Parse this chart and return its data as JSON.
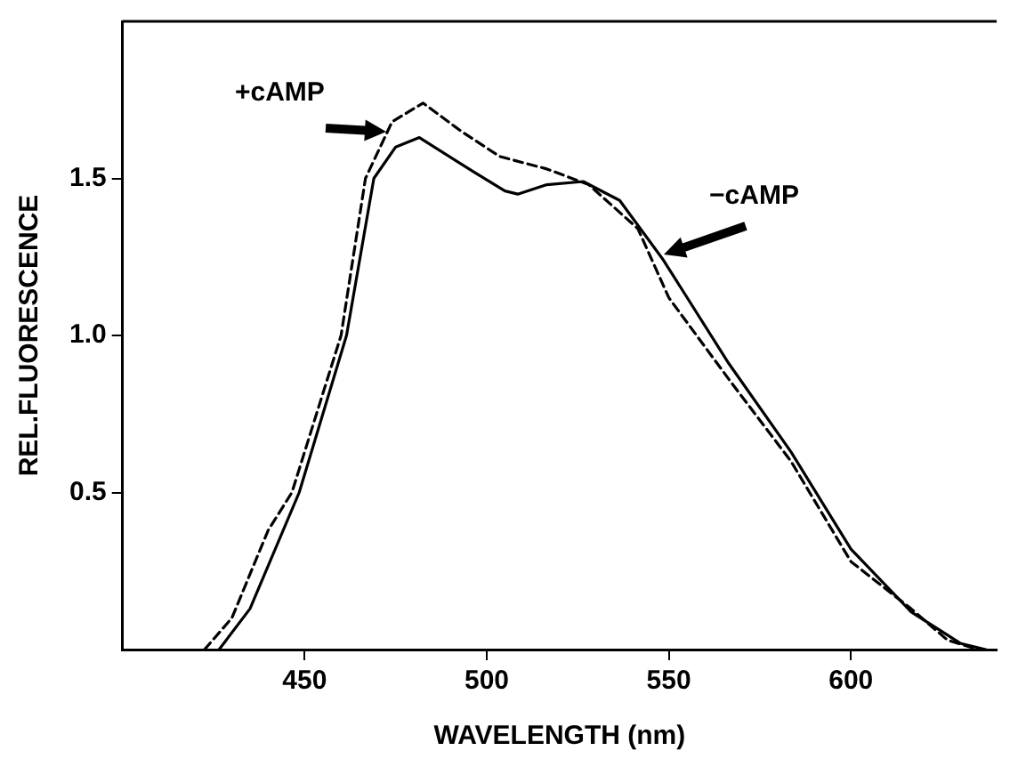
{
  "chart_data": {
    "type": "line",
    "xlabel": "WAVELENGTH (nm)",
    "ylabel": "REL.FLUORESCENCE",
    "xlim": [
      400,
      640
    ],
    "xticks": [
      450,
      500,
      550,
      600
    ],
    "ylim": [
      0,
      2
    ],
    "yticks": [
      0.5,
      {
        "value": 1,
        "label": "1.0"
      },
      1.5
    ],
    "grid": false,
    "legend": false,
    "marker": "none",
    "annotations": [
      {
        "text": "+cAMP",
        "x": 472.5,
        "y": 1.65
      },
      {
        "text": "−cAMP",
        "x": 548.5,
        "y": 1.26
      }
    ],
    "series": [
      {
        "color": "#000000",
        "line_style": "dashed",
        "x": [
          422.5,
          430,
          440,
          446.5,
          460,
          466.7,
          474,
          482.5,
          493,
          503.5,
          516.5,
          528,
          541.5,
          550,
          566.5,
          583.5,
          600,
          616.5,
          626.5,
          635
        ],
        "values": [
          0,
          0.1,
          0.38,
          0.5,
          1.0,
          1.5,
          1.68,
          1.74,
          1.65,
          1.57,
          1.53,
          1.48,
          1.34,
          1.12,
          0.86,
          0.6,
          0.28,
          0.13,
          0.03,
          0
        ]
      },
      {
        "color": "#000000",
        "line_style": "solid",
        "x": [
          426.5,
          435,
          448.5,
          461.5,
          469,
          475,
          481.5,
          496.5,
          505,
          508.5,
          516.5,
          526.5,
          536.5,
          548.5,
          566.5,
          583.5,
          600,
          616.5,
          630,
          637
        ],
        "values": [
          0,
          0.13,
          0.5,
          1.0,
          1.5,
          1.6,
          1.63,
          1.52,
          1.46,
          1.45,
          1.48,
          1.49,
          1.43,
          1.24,
          0.91,
          0.63,
          0.32,
          0.12,
          0.02,
          0
        ]
      }
    ]
  }
}
